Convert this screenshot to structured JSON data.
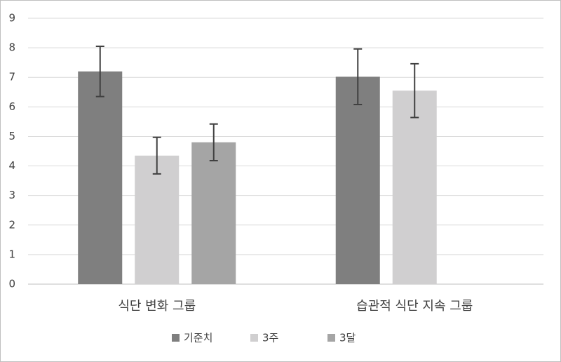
{
  "chart_data": {
    "type": "bar",
    "categories": [
      "식단 변화 그룹",
      "습관적 식단 지속 그룹"
    ],
    "series": [
      {
        "name": "기준치",
        "color": "#7f7f7f",
        "values": [
          7.2,
          7.02
        ],
        "errors": [
          0.85,
          0.94
        ]
      },
      {
        "name": "3주",
        "color": "#d0cfd0",
        "values": [
          4.35,
          6.55
        ],
        "errors": [
          0.62,
          0.91
        ]
      },
      {
        "name": "3달",
        "color": "#a5a5a5",
        "values": [
          4.8,
          null
        ],
        "errors": [
          0.62,
          null
        ]
      }
    ],
    "ylim": [
      0,
      9
    ],
    "yticks": [
      0,
      1,
      2,
      3,
      4,
      5,
      6,
      7,
      8,
      9
    ],
    "grid": true,
    "legend": "bottom"
  }
}
